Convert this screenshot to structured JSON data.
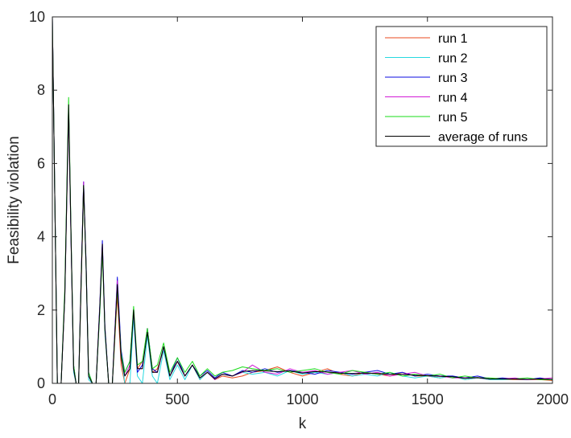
{
  "chart_data": {
    "type": "line",
    "title": "",
    "xlabel": "k",
    "ylabel": "Feasibility violation",
    "xlim": [
      0,
      2000
    ],
    "ylim": [
      0,
      10
    ],
    "x_ticks": [
      "0",
      "500",
      "1000",
      "1500",
      "2000"
    ],
    "y_ticks": [
      "0",
      "2",
      "4",
      "6",
      "8",
      "10"
    ],
    "grid": false,
    "legend_position": "top-right",
    "x": [
      0,
      20,
      35,
      50,
      65,
      75,
      85,
      95,
      105,
      115,
      125,
      135,
      145,
      160,
      175,
      190,
      200,
      210,
      225,
      240,
      260,
      275,
      290,
      310,
      325,
      340,
      360,
      380,
      400,
      420,
      445,
      470,
      500,
      530,
      560,
      590,
      620,
      650,
      680,
      720,
      760,
      800,
      850,
      900,
      950,
      1000,
      1050,
      1100,
      1150,
      1200,
      1250,
      1300,
      1350,
      1400,
      1450,
      1500,
      1550,
      1600,
      1650,
      1700,
      1750,
      1800,
      1850,
      1900,
      1950,
      2000
    ],
    "series": [
      {
        "name": "run 1",
        "color": "#E8491D",
        "values": [
          10,
          0,
          0,
          2.4,
          7.4,
          3.8,
          0.4,
          0,
          0,
          2.6,
          5.4,
          3.2,
          0.2,
          0,
          0,
          2.1,
          3.7,
          1.5,
          0,
          0,
          2.4,
          0.5,
          0,
          0.4,
          1.9,
          0.4,
          0.6,
          1.4,
          0.3,
          0.4,
          0.9,
          0.2,
          0.6,
          0.2,
          0.5,
          0.1,
          0.3,
          0.1,
          0.2,
          0.15,
          0.2,
          0.3,
          0.35,
          0.45,
          0.3,
          0.2,
          0.3,
          0.4,
          0.25,
          0.2,
          0.3,
          0.25,
          0.2,
          0.3,
          0.2,
          0.2,
          0.15,
          0.2,
          0.1,
          0.15,
          0.1,
          0.1,
          0.1,
          0.1,
          0.1,
          0.08
        ]
      },
      {
        "name": "run 2",
        "color": "#26D9E0",
        "values": [
          10,
          0,
          0,
          2.5,
          7.6,
          3.9,
          0.3,
          0,
          0,
          2.7,
          5.5,
          3.1,
          0.1,
          0,
          0,
          2.0,
          3.8,
          1.4,
          0,
          0,
          2.7,
          0.8,
          0,
          0,
          1.8,
          0.2,
          0,
          1.3,
          0.2,
          0,
          0.9,
          0.1,
          0.5,
          0.1,
          0.5,
          0.1,
          0.3,
          0.1,
          0.25,
          0.2,
          0.3,
          0.25,
          0.3,
          0.2,
          0.35,
          0.25,
          0.3,
          0.25,
          0.3,
          0.2,
          0.25,
          0.2,
          0.3,
          0.2,
          0.15,
          0.2,
          0.15,
          0.2,
          0.1,
          0.15,
          0.1,
          0.1,
          0.12,
          0.1,
          0.12,
          0.1
        ]
      },
      {
        "name": "run 3",
        "color": "#0B0BE0",
        "values": [
          10,
          0,
          0,
          2.4,
          7.5,
          3.8,
          0.5,
          0,
          0,
          2.8,
          5.5,
          3.3,
          0.3,
          0,
          0,
          2.2,
          3.9,
          1.6,
          0,
          0,
          2.9,
          0.9,
          0.3,
          0.6,
          2.0,
          0.3,
          0.5,
          1.5,
          0.4,
          0.3,
          1.0,
          0.2,
          0.7,
          0.2,
          0.5,
          0.2,
          0.35,
          0.15,
          0.3,
          0.2,
          0.35,
          0.3,
          0.4,
          0.3,
          0.35,
          0.3,
          0.25,
          0.35,
          0.3,
          0.25,
          0.3,
          0.35,
          0.25,
          0.3,
          0.2,
          0.25,
          0.2,
          0.2,
          0.15,
          0.2,
          0.12,
          0.15,
          0.12,
          0.1,
          0.15,
          0.1
        ]
      },
      {
        "name": "run 4",
        "color": "#D21BD6",
        "values": [
          10,
          0,
          0,
          2.5,
          7.6,
          3.9,
          0.4,
          0,
          0,
          2.8,
          5.5,
          3.2,
          0.2,
          0,
          0,
          2.1,
          3.8,
          1.5,
          0,
          0,
          2.8,
          0.7,
          0.2,
          0.5,
          2.0,
          0.4,
          0.4,
          1.5,
          0.3,
          0.3,
          1.0,
          0.2,
          0.6,
          0.2,
          0.5,
          0.15,
          0.3,
          0.1,
          0.25,
          0.2,
          0.3,
          0.5,
          0.3,
          0.25,
          0.4,
          0.3,
          0.35,
          0.25,
          0.3,
          0.35,
          0.25,
          0.3,
          0.2,
          0.25,
          0.3,
          0.2,
          0.2,
          0.15,
          0.15,
          0.15,
          0.12,
          0.12,
          0.15,
          0.1,
          0.12,
          0.15
        ]
      },
      {
        "name": "run 5",
        "color": "#1ADC1A",
        "values": [
          10,
          0,
          0,
          2.6,
          7.8,
          4.0,
          0.5,
          0,
          0,
          2.7,
          5.4,
          3.2,
          0.3,
          0,
          0,
          2.0,
          3.6,
          1.5,
          0,
          0,
          2.6,
          0.8,
          0.3,
          0.6,
          2.1,
          0.5,
          0.6,
          1.5,
          0.4,
          0.5,
          1.1,
          0.3,
          0.7,
          0.3,
          0.6,
          0.2,
          0.4,
          0.2,
          0.3,
          0.35,
          0.45,
          0.4,
          0.35,
          0.4,
          0.3,
          0.35,
          0.4,
          0.3,
          0.25,
          0.35,
          0.3,
          0.25,
          0.3,
          0.2,
          0.25,
          0.2,
          0.25,
          0.15,
          0.2,
          0.15,
          0.15,
          0.12,
          0.12,
          0.15,
          0.1,
          0.1
        ]
      },
      {
        "name": "average of runs",
        "color": "#000000",
        "values": [
          10,
          0,
          0,
          2.4,
          7.6,
          3.9,
          0.4,
          0,
          0,
          2.7,
          5.4,
          3.2,
          0.2,
          0,
          0,
          2.1,
          3.8,
          1.5,
          0,
          0,
          2.7,
          0.7,
          0.2,
          0.4,
          2.0,
          0.4,
          0.4,
          1.4,
          0.3,
          0.3,
          1.0,
          0.2,
          0.6,
          0.2,
          0.5,
          0.15,
          0.3,
          0.12,
          0.25,
          0.2,
          0.32,
          0.35,
          0.34,
          0.32,
          0.34,
          0.28,
          0.32,
          0.31,
          0.28,
          0.27,
          0.28,
          0.27,
          0.25,
          0.25,
          0.22,
          0.21,
          0.19,
          0.18,
          0.14,
          0.16,
          0.12,
          0.12,
          0.12,
          0.11,
          0.12,
          0.11
        ]
      }
    ]
  }
}
